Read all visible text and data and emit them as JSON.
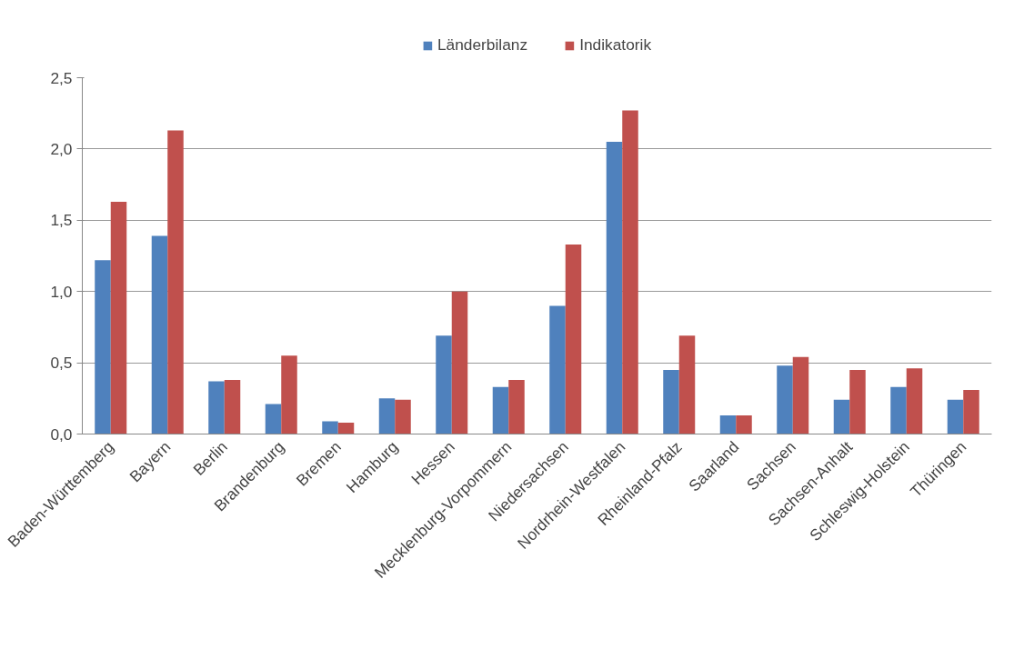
{
  "chart_data": {
    "type": "bar",
    "categories": [
      "Baden-Württemberg",
      "Bayern",
      "Berlin",
      "Brandenburg",
      "Bremen",
      "Hamburg",
      "Hessen",
      "Mecklenburg-Vorpommern",
      "Niedersachsen",
      "Nordrhein-Westfalen",
      "Rheinland-Pfalz",
      "Saarland",
      "Sachsen",
      "Sachsen-Anhalt",
      "Schleswig-Holstein",
      "Thüringen"
    ],
    "series": [
      {
        "name": "Länderbilanz",
        "color": "#4f81bd",
        "values": [
          1.22,
          1.39,
          0.37,
          0.21,
          0.09,
          0.25,
          0.69,
          0.33,
          0.9,
          2.05,
          0.45,
          0.13,
          0.48,
          0.24,
          0.33,
          0.24
        ]
      },
      {
        "name": "Indikatorik",
        "color": "#c0504d",
        "values": [
          1.63,
          2.13,
          0.38,
          0.55,
          0.08,
          0.24,
          1.0,
          0.38,
          1.33,
          2.27,
          0.69,
          0.13,
          0.54,
          0.45,
          0.46,
          0.31
        ]
      }
    ],
    "ylim": [
      0,
      2.5
    ],
    "yticks": [
      {
        "value": 0,
        "label": "0,0"
      },
      {
        "value": 0.5,
        "label": "0,5"
      },
      {
        "value": 1,
        "label": "1,0"
      },
      {
        "value": 1.5,
        "label": "1,5"
      },
      {
        "value": 2,
        "label": "2,0"
      },
      {
        "value": 2.5,
        "label": "2,5"
      }
    ],
    "grid": "y",
    "legend": "top"
  }
}
